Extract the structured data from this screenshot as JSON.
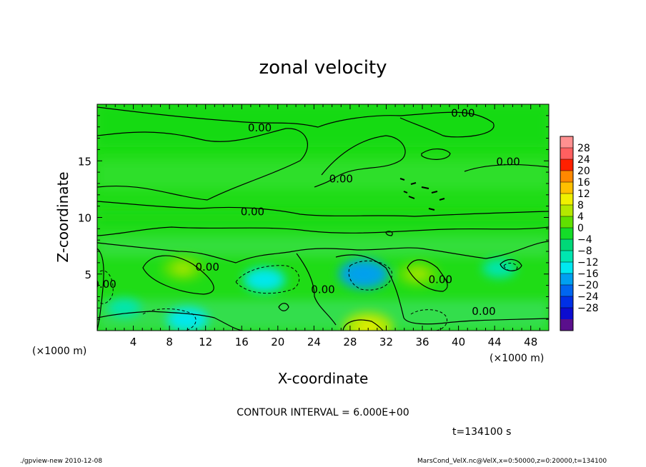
{
  "chart_data": {
    "type": "heatmap",
    "title": "zonal velocity",
    "xlabel": "X-coordinate",
    "ylabel": "Z-coordinate",
    "x_unit_left": "(×1000 m)",
    "x_unit_right": "(×1000 m)",
    "xlim": [
      0,
      50
    ],
    "ylim": [
      0,
      20
    ],
    "x_ticks": [
      4,
      8,
      12,
      16,
      20,
      24,
      28,
      32,
      36,
      40,
      44,
      48
    ],
    "y_ticks": [
      5,
      10,
      15
    ],
    "contour_interval_text": "CONTOUR INTERVAL = 6.000E+00",
    "time_text": "t=134100 s",
    "contour_labels": [
      {
        "text": "0.00",
        "x": 40.5,
        "y": 18.9
      },
      {
        "text": "0.00",
        "x": 18.0,
        "y": 17.6
      },
      {
        "text": "0.00",
        "x": 27.0,
        "y": 13.1
      },
      {
        "text": "0.00",
        "x": 45.5,
        "y": 14.6
      },
      {
        "text": "0.00",
        "x": 17.2,
        "y": 10.2
      },
      {
        "text": "0.00",
        "x": 12.2,
        "y": 5.3
      },
      {
        "text": "0.00",
        "x": 0.8,
        "y": 3.8
      },
      {
        "text": "0.00",
        "x": 25.0,
        "y": 3.3
      },
      {
        "text": "0.00",
        "x": 38.0,
        "y": 4.2
      },
      {
        "text": "0.00",
        "x": 42.8,
        "y": 1.4
      }
    ],
    "colorbar": {
      "levels": [
        -28,
        -24,
        -20,
        -16,
        -12,
        -8,
        -4,
        0,
        4,
        8,
        12,
        16,
        20,
        24,
        28
      ],
      "labels": [
        "28",
        "24",
        "20",
        "16",
        "12",
        "8",
        "4",
        "0",
        "−4",
        "−8",
        "−12",
        "−16",
        "−20",
        "−24",
        "−28"
      ],
      "colors": [
        "#5a0f8c",
        "#0c0cd0",
        "#0030e6",
        "#0066f0",
        "#00a0f0",
        "#00e8f0",
        "#00e6b0",
        "#00d878",
        "#14dc28",
        "#60e000",
        "#b4e800",
        "#f0f000",
        "#ffc000",
        "#ff8800",
        "#ff2000",
        "#ff6060",
        "#ff9090"
      ]
    },
    "fields": {
      "background_color": "#1fdc16",
      "positive_blobs": [
        {
          "x": 9.5,
          "y": 5.5,
          "value": 8
        },
        {
          "x": 35.5,
          "y": 5.0,
          "value": 8
        },
        {
          "x": 30.0,
          "y": 0.3,
          "value": 12
        }
      ],
      "negative_blobs": [
        {
          "x": 29.5,
          "y": 5.0,
          "value": -12
        },
        {
          "x": 18.5,
          "y": 4.5,
          "value": -8
        },
        {
          "x": 10.0,
          "y": 1.0,
          "value": -8
        },
        {
          "x": 3.0,
          "y": 2.0,
          "value": -4
        },
        {
          "x": 44.5,
          "y": 5.5,
          "value": -4
        }
      ]
    }
  },
  "footer": {
    "left": "./gpview-new   2010-12-08",
    "right": "MarsCond_VelX.nc@VelX,x=0:50000,z=0:20000,t=134100"
  }
}
